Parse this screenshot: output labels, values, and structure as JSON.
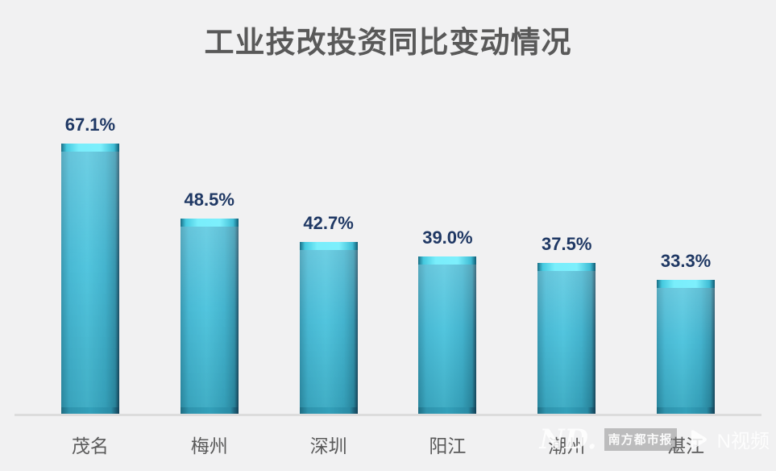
{
  "chart": {
    "title": "工业技改投资同比变动情况",
    "watermark": {
      "logo_text": "ND.",
      "badge_text": "南方都市报",
      "video_text": "N视频",
      "play_icon": "play-triangle-icon"
    }
  },
  "chart_data": {
    "type": "bar",
    "title": "工业技改投资同比变动情况",
    "categories": [
      "茂名",
      "梅州",
      "深圳",
      "阳江",
      "潮州",
      "湛江"
    ],
    "values": [
      67.1,
      48.5,
      42.7,
      39.0,
      37.5,
      33.3
    ],
    "value_labels": [
      "67.1%",
      "48.5%",
      "42.7%",
      "39.0%",
      "37.5%",
      "33.3%"
    ],
    "xlabel": "",
    "ylabel": "",
    "ylim": [
      0,
      80
    ],
    "grid": false,
    "legend": false,
    "y_axis_visible": false,
    "colors": {
      "background": "#f1f1f2",
      "title_text": "#595959",
      "bar_main": "#3aafcb",
      "bar_highlight": "#7deffc",
      "bar_shadow": "#16485f",
      "value_label_text": "#1f3864",
      "category_label_text": "#5a5a5a",
      "axis_line": "#dcdcdc"
    }
  }
}
